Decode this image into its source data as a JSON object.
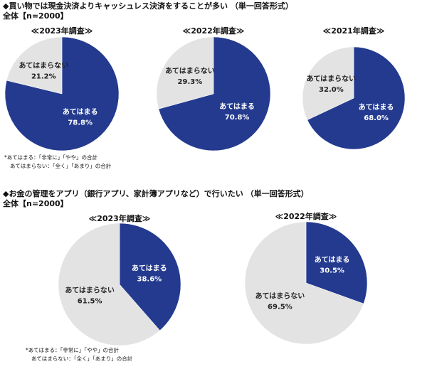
{
  "sections": [
    {
      "title": "◆買い物では現金決済よりキャッシュレス決済をすることが多い （単一回答形式）",
      "subtitle": "全体【n=2000】",
      "notes": [
        "*あてはまる：「非常に」「やや」の合計",
        "あてはまらない：「全く」「あまり」の合計"
      ]
    },
    {
      "title": "◆お金の管理をアプリ（銀行アプリ、家計簿アプリなど）で行いたい （単一回答形式）",
      "subtitle": "全体【n=2000】",
      "notes": [
        "*あてはまる：「非常に」「やや」の合計",
        "あてはまらない：「全く」「あまり」の合計"
      ]
    }
  ],
  "chart_data": [
    {
      "type": "pie",
      "title": "≪2023年調査≫",
      "categories": [
        "あてはまる",
        "あてはまらない"
      ],
      "values": [
        78.8,
        21.2
      ],
      "value_labels": [
        "78.8%",
        "21.2%"
      ],
      "colors": [
        "#233a8f",
        "#e3e3e3"
      ]
    },
    {
      "type": "pie",
      "title": "≪2022年調査≫",
      "categories": [
        "あてはまる",
        "あてはまらない"
      ],
      "values": [
        70.8,
        29.3
      ],
      "value_labels": [
        "70.8%",
        "29.3%"
      ],
      "colors": [
        "#233a8f",
        "#e3e3e3"
      ]
    },
    {
      "type": "pie",
      "title": "≪2021年調査≫",
      "categories": [
        "あてはまる",
        "あてはまらない"
      ],
      "values": [
        68.0,
        32.0
      ],
      "value_labels": [
        "68.0%",
        "32.0%"
      ],
      "colors": [
        "#233a8f",
        "#e3e3e3"
      ]
    },
    {
      "type": "pie",
      "title": "≪2023年調査≫",
      "categories": [
        "あてはまる",
        "あてはまらない"
      ],
      "values": [
        38.6,
        61.5
      ],
      "value_labels": [
        "38.6%",
        "61.5%"
      ],
      "colors": [
        "#233a8f",
        "#e3e3e3"
      ]
    },
    {
      "type": "pie",
      "title": "≪2022年調査≫",
      "categories": [
        "あてはまる",
        "あてはまらない"
      ],
      "values": [
        30.5,
        69.5
      ],
      "value_labels": [
        "30.5%",
        "69.5%"
      ],
      "colors": [
        "#233a8f",
        "#e3e3e3"
      ]
    }
  ]
}
